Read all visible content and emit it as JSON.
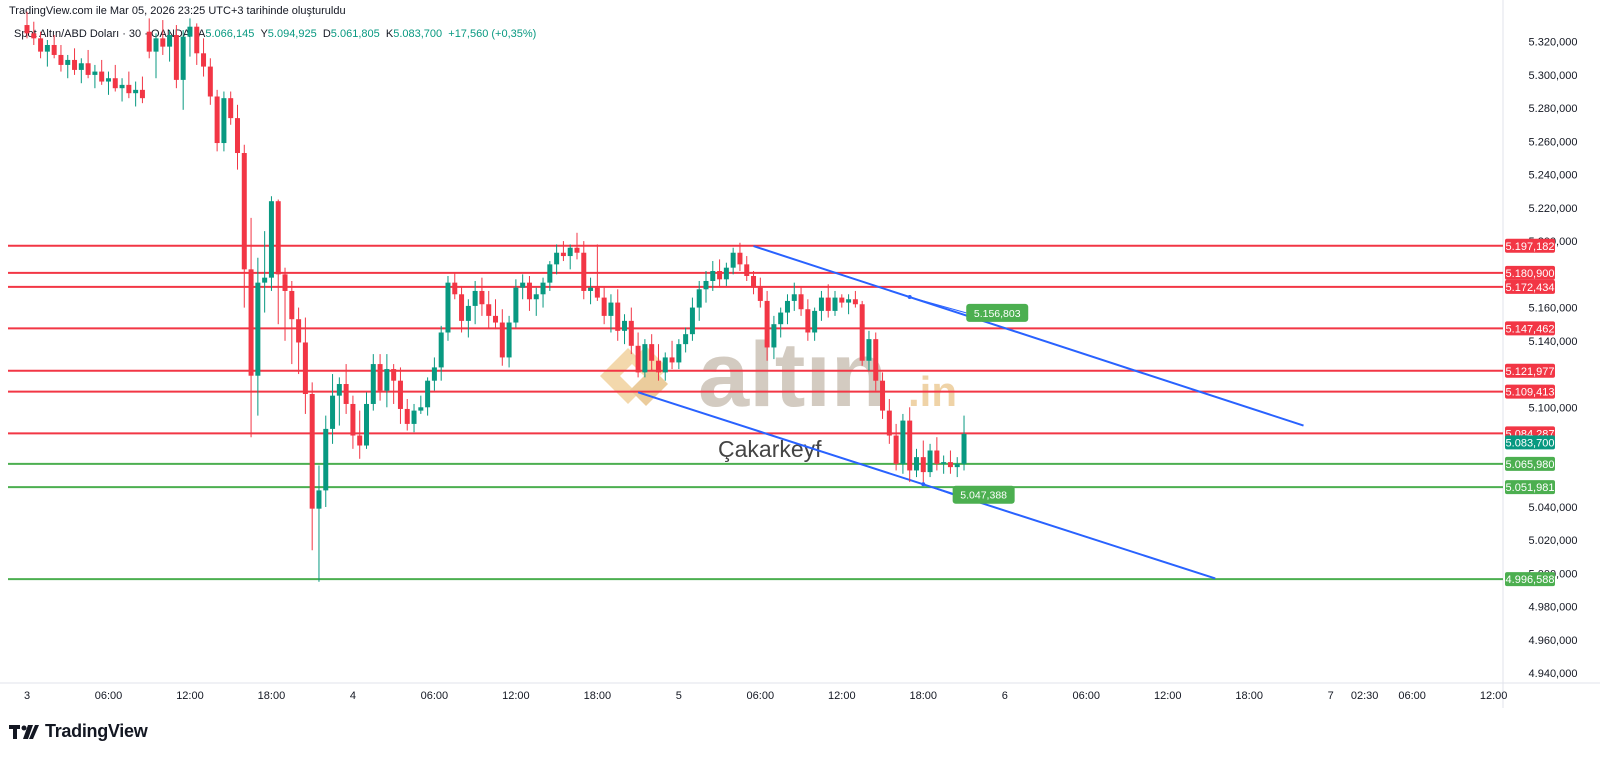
{
  "header": {
    "caption": "TradingView.com ile Mar 05, 2026 23:25 UTC+3 tarihinde oluşturuldu"
  },
  "symbol": {
    "name": "Spot Altın/ABD Doları · 30 · OANDA",
    "open_label": "A",
    "open": "5.066,145",
    "high_label": "Y",
    "high": "5.094,925",
    "low_label": "D",
    "low": "5.061,805",
    "close_label": "K",
    "close": "5.083,700",
    "change": "+17,560 (+0,35%)"
  },
  "watermark": {
    "text": "altın",
    "suffix": ".in",
    "subtitle": "Çakarkeyf"
  },
  "footer": {
    "logo_text": "TradingView"
  },
  "colors": {
    "bull": "#089981",
    "bear": "#f23645",
    "resistance": "#f23645",
    "support": "#4caf50",
    "channel": "#2962ff",
    "callout": "#4caf50"
  },
  "chart_data": {
    "type": "candlestick",
    "y_ticks": [
      "5.320,000",
      "5.300,000",
      "5.280,000",
      "5.260,000",
      "5.240,000",
      "5.220,000",
      "5.200,000",
      "5.160,000",
      "5.140,000",
      "5.100,000",
      "5.040,000",
      "5.020,000",
      "5.000,000",
      "4.980,000",
      "4.960,000",
      "4.940,000"
    ],
    "y_tick_values": [
      5320,
      5300,
      5280,
      5260,
      5240,
      5220,
      5200,
      5160,
      5140,
      5100,
      5040,
      5020,
      5000,
      4980,
      4960,
      4940
    ],
    "x_ticks": [
      {
        "label": "3",
        "slot": 0
      },
      {
        "label": "06:00",
        "slot": 12
      },
      {
        "label": "12:00",
        "slot": 24
      },
      {
        "label": "18:00",
        "slot": 36
      },
      {
        "label": "4",
        "slot": 48
      },
      {
        "label": "06:00",
        "slot": 60
      },
      {
        "label": "12:00",
        "slot": 72
      },
      {
        "label": "18:00",
        "slot": 84
      },
      {
        "label": "5",
        "slot": 96
      },
      {
        "label": "06:00",
        "slot": 108
      },
      {
        "label": "12:00",
        "slot": 120
      },
      {
        "label": "18:00",
        "slot": 132
      },
      {
        "label": "6",
        "slot": 144
      },
      {
        "label": "06:00",
        "slot": 156
      },
      {
        "label": "12:00",
        "slot": 168
      },
      {
        "label": "18:00",
        "slot": 180
      },
      {
        "label": "7",
        "slot": 192
      },
      {
        "label": "02:30",
        "slot": 197
      },
      {
        "label": "06:00",
        "slot": 204
      },
      {
        "label": "12:00",
        "slot": 216
      }
    ],
    "levels": [
      {
        "price": 5197.182,
        "label": "5.197,182",
        "kind": "resistance"
      },
      {
        "price": 5180.9,
        "label": "5.180,900",
        "kind": "resistance"
      },
      {
        "price": 5172.434,
        "label": "5.172,434",
        "kind": "resistance"
      },
      {
        "price": 5147.462,
        "label": "5.147,462",
        "kind": "resistance"
      },
      {
        "price": 5121.977,
        "label": "5.121,977",
        "kind": "resistance"
      },
      {
        "price": 5109.413,
        "label": "5.109,413",
        "kind": "resistance"
      },
      {
        "price": 5084.287,
        "label": "5.084,287",
        "kind": "resistance"
      },
      {
        "price": 5065.98,
        "label": "5.065,980",
        "kind": "support"
      },
      {
        "price": 5051.981,
        "label": "5.051,981",
        "kind": "support"
      },
      {
        "price": 4996.588,
        "label": "4.996,588",
        "kind": "support"
      }
    ],
    "last_price": {
      "price": 5083.7,
      "label": "5.083,700"
    },
    "channel": {
      "upper": [
        {
          "slot": 107,
          "price": 5197
        },
        {
          "slot": 188,
          "price": 5089
        }
      ],
      "lower": [
        {
          "slot": 90,
          "price": 5109
        },
        {
          "slot": 175,
          "price": 4997
        }
      ]
    },
    "callouts": [
      {
        "label": "5.156,803",
        "slot": 137,
        "price": 5156.8
      },
      {
        "label": "5.047,388",
        "slot": 135,
        "price": 5047.4
      }
    ],
    "candles": [
      [
        0,
        5330,
        5338,
        5322,
        5325
      ],
      [
        1,
        5325,
        5332,
        5318,
        5322
      ],
      [
        2,
        5322,
        5326,
        5310,
        5314
      ],
      [
        3,
        5314,
        5321,
        5305,
        5318
      ],
      [
        4,
        5318,
        5324,
        5310,
        5312
      ],
      [
        5,
        5312,
        5318,
        5302,
        5306
      ],
      [
        6,
        5306,
        5312,
        5298,
        5309
      ],
      [
        7,
        5309,
        5316,
        5300,
        5303
      ],
      [
        8,
        5303,
        5310,
        5295,
        5307
      ],
      [
        9,
        5307,
        5315,
        5298,
        5300
      ],
      [
        10,
        5300,
        5306,
        5292,
        5302
      ],
      [
        11,
        5302,
        5309,
        5294,
        5296
      ],
      [
        12,
        5296,
        5302,
        5288,
        5298
      ],
      [
        13,
        5298,
        5306,
        5290,
        5292
      ],
      [
        14,
        5292,
        5298,
        5284,
        5294
      ],
      [
        15,
        5294,
        5302,
        5286,
        5289
      ],
      [
        16,
        5289,
        5296,
        5281,
        5291
      ],
      [
        17,
        5291,
        5299,
        5283,
        5286
      ],
      [
        18,
        5326,
        5334,
        5310,
        5314
      ],
      [
        19,
        5314,
        5325,
        5298,
        5322
      ],
      [
        20,
        5322,
        5333,
        5312,
        5317
      ],
      [
        21,
        5317,
        5327,
        5308,
        5324
      ],
      [
        22,
        5324,
        5330,
        5292,
        5297
      ],
      [
        23,
        5297,
        5327,
        5279,
        5323
      ],
      [
        24,
        5323,
        5334,
        5311,
        5329
      ],
      [
        25,
        5329,
        5331,
        5306,
        5313
      ],
      [
        26,
        5313,
        5322,
        5299,
        5305
      ],
      [
        27,
        5305,
        5310,
        5282,
        5287
      ],
      [
        28,
        5287,
        5291,
        5254,
        5259
      ],
      [
        29,
        5259,
        5290,
        5254,
        5286
      ],
      [
        30,
        5286,
        5290,
        5270,
        5274
      ],
      [
        31,
        5274,
        5282,
        5243,
        5253
      ],
      [
        32,
        5253,
        5258,
        5160,
        5183
      ],
      [
        33,
        5183,
        5214,
        5082,
        5119
      ],
      [
        34,
        5119,
        5190,
        5095,
        5175
      ],
      [
        35,
        5175,
        5206,
        5157,
        5178
      ],
      [
        36,
        5178,
        5227,
        5170,
        5224
      ],
      [
        37,
        5224,
        5225,
        5150,
        5180
      ],
      [
        38,
        5180,
        5184,
        5140,
        5170
      ],
      [
        39,
        5170,
        5176,
        5126,
        5153
      ],
      [
        40,
        5153,
        5160,
        5120,
        5139
      ],
      [
        41,
        5139,
        5154,
        5096,
        5108
      ],
      [
        42,
        5108,
        5115,
        5014,
        5039
      ],
      [
        43,
        5039,
        5065,
        4995,
        5050
      ],
      [
        44,
        5050,
        5095,
        5040,
        5087
      ],
      [
        45,
        5087,
        5120,
        5078,
        5107
      ],
      [
        46,
        5107,
        5118,
        5089,
        5114
      ],
      [
        47,
        5114,
        5126,
        5096,
        5102
      ],
      [
        48,
        5102,
        5107,
        5075,
        5083
      ],
      [
        49,
        5083,
        5098,
        5069,
        5077
      ],
      [
        50,
        5077,
        5109,
        5075,
        5102
      ],
      [
        51,
        5102,
        5132,
        5098,
        5126
      ],
      [
        52,
        5126,
        5132,
        5104,
        5110
      ],
      [
        53,
        5110,
        5132,
        5100,
        5123
      ],
      [
        54,
        5123,
        5126,
        5102,
        5116
      ],
      [
        55,
        5116,
        5124,
        5090,
        5099
      ],
      [
        56,
        5099,
        5105,
        5086,
        5090
      ],
      [
        57,
        5090,
        5102,
        5085,
        5098
      ],
      [
        58,
        5098,
        5107,
        5096,
        5100
      ],
      [
        59,
        5100,
        5118,
        5095,
        5116
      ],
      [
        60,
        5116,
        5130,
        5110,
        5124
      ],
      [
        61,
        5124,
        5149,
        5116,
        5145
      ],
      [
        62,
        5145,
        5179,
        5140,
        5175
      ],
      [
        63,
        5175,
        5181,
        5165,
        5168
      ],
      [
        64,
        5168,
        5173,
        5145,
        5152
      ],
      [
        65,
        5152,
        5165,
        5142,
        5161
      ],
      [
        66,
        5161,
        5176,
        5150,
        5170
      ],
      [
        67,
        5170,
        5178,
        5155,
        5162
      ],
      [
        68,
        5162,
        5170,
        5148,
        5155
      ],
      [
        69,
        5155,
        5165,
        5147,
        5151
      ],
      [
        70,
        5151,
        5159,
        5125,
        5130
      ],
      [
        71,
        5130,
        5155,
        5124,
        5151
      ],
      [
        72,
        5151,
        5177,
        5148,
        5172
      ],
      [
        73,
        5172,
        5180,
        5165,
        5175
      ],
      [
        74,
        5175,
        5179,
        5158,
        5165
      ],
      [
        75,
        5165,
        5172,
        5155,
        5168
      ],
      [
        76,
        5168,
        5178,
        5160,
        5175
      ],
      [
        77,
        5175,
        5188,
        5170,
        5186
      ],
      [
        78,
        5186,
        5198,
        5180,
        5193
      ],
      [
        79,
        5193,
        5200,
        5188,
        5191
      ],
      [
        80,
        5191,
        5198,
        5183,
        5196
      ],
      [
        81,
        5196,
        5205,
        5189,
        5193
      ],
      [
        82,
        5193,
        5200,
        5165,
        5170
      ],
      [
        83,
        5170,
        5178,
        5162,
        5172
      ],
      [
        84,
        5172,
        5198,
        5164,
        5166
      ],
      [
        85,
        5166,
        5172,
        5150,
        5155
      ],
      [
        86,
        5155,
        5168,
        5145,
        5163
      ],
      [
        87,
        5163,
        5171,
        5140,
        5146
      ],
      [
        88,
        5146,
        5156,
        5138,
        5152
      ],
      [
        89,
        5152,
        5160,
        5132,
        5137
      ],
      [
        90,
        5137,
        5145,
        5118,
        5121
      ],
      [
        91,
        5121,
        5141,
        5118,
        5138
      ],
      [
        92,
        5138,
        5144,
        5122,
        5128
      ],
      [
        93,
        5128,
        5138,
        5116,
        5121
      ],
      [
        94,
        5121,
        5133,
        5116,
        5130
      ],
      [
        95,
        5130,
        5140,
        5123,
        5127
      ],
      [
        96,
        5127,
        5141,
        5123,
        5138
      ],
      [
        97,
        5138,
        5148,
        5133,
        5144
      ],
      [
        98,
        5144,
        5166,
        5140,
        5160
      ],
      [
        99,
        5160,
        5176,
        5152,
        5171
      ],
      [
        100,
        5171,
        5182,
        5163,
        5176
      ],
      [
        101,
        5176,
        5188,
        5170,
        5182
      ],
      [
        102,
        5182,
        5189,
        5172,
        5177
      ],
      [
        103,
        5177,
        5187,
        5173,
        5184
      ],
      [
        104,
        5184,
        5196,
        5180,
        5193
      ],
      [
        105,
        5193,
        5199,
        5182,
        5186
      ],
      [
        106,
        5186,
        5191,
        5176,
        5179
      ],
      [
        107,
        5179,
        5182,
        5168,
        5172
      ],
      [
        108,
        5172,
        5178,
        5160,
        5164
      ],
      [
        109,
        5164,
        5170,
        5128,
        5136
      ],
      [
        110,
        5136,
        5155,
        5129,
        5150
      ],
      [
        111,
        5150,
        5160,
        5142,
        5157
      ],
      [
        112,
        5157,
        5168,
        5150,
        5164
      ],
      [
        113,
        5164,
        5175,
        5158,
        5168
      ],
      [
        114,
        5168,
        5172,
        5155,
        5159
      ],
      [
        115,
        5159,
        5165,
        5140,
        5145
      ],
      [
        116,
        5145,
        5160,
        5140,
        5158
      ],
      [
        117,
        5158,
        5170,
        5152,
        5166
      ],
      [
        118,
        5166,
        5174,
        5154,
        5158
      ],
      [
        119,
        5158,
        5170,
        5155,
        5166
      ],
      [
        120,
        5166,
        5168,
        5160,
        5163
      ],
      [
        121,
        5163,
        5168,
        5156,
        5165
      ],
      [
        122,
        5165,
        5170,
        5160,
        5162
      ],
      [
        123,
        5162,
        5164,
        5125,
        5128
      ],
      [
        124,
        5128,
        5146,
        5122,
        5141
      ],
      [
        125,
        5141,
        5145,
        5110,
        5116
      ],
      [
        126,
        5116,
        5121,
        5093,
        5098
      ],
      [
        127,
        5098,
        5105,
        5078,
        5083
      ],
      [
        128,
        5083,
        5090,
        5062,
        5066
      ],
      [
        129,
        5066,
        5096,
        5060,
        5092
      ],
      [
        130,
        5092,
        5100,
        5055,
        5062
      ],
      [
        131,
        5062,
        5075,
        5058,
        5070
      ],
      [
        132,
        5070,
        5080,
        5054,
        5061
      ],
      [
        133,
        5061,
        5078,
        5058,
        5074
      ],
      [
        134,
        5074,
        5082,
        5062,
        5066
      ],
      [
        135,
        5066,
        5071,
        5060,
        5067
      ],
      [
        136,
        5067,
        5074,
        5060,
        5064
      ],
      [
        137,
        5064,
        5070,
        5058,
        5066
      ],
      [
        138,
        5066,
        5095,
        5062,
        5084
      ]
    ]
  }
}
